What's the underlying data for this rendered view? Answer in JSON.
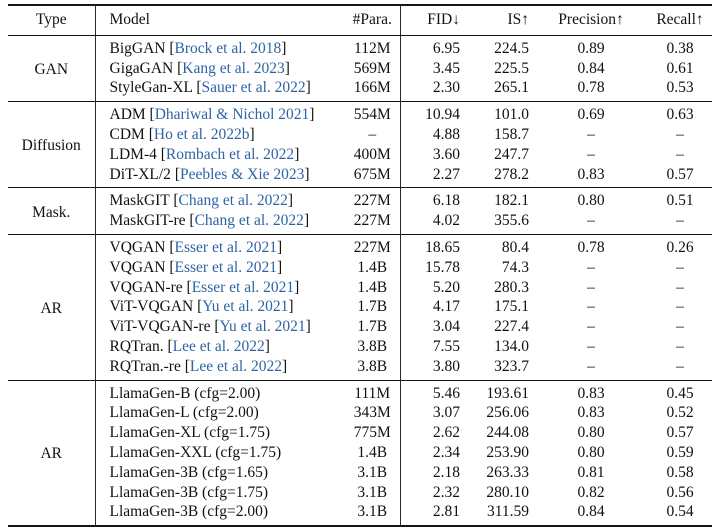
{
  "table": {
    "columns": [
      "Type",
      "Model",
      "#Para.",
      "FID↓",
      "IS↑",
      "Precision↑",
      "Recall↑"
    ],
    "groups": [
      {
        "type": "GAN",
        "rows": [
          {
            "model": "BigGAN",
            "cite": "Brock et al. 2018",
            "para": "112M",
            "fid": "6.95",
            "is": "224.5",
            "precision": "0.89",
            "recall": "0.38"
          },
          {
            "model": "GigaGAN",
            "cite": "Kang et al. 2023",
            "para": "569M",
            "fid": "3.45",
            "is": "225.5",
            "precision": "0.84",
            "recall": "0.61"
          },
          {
            "model": "StyleGan-XL",
            "cite": "Sauer et al. 2022",
            "para": "166M",
            "fid": "2.30",
            "is": "265.1",
            "precision": "0.78",
            "recall": "0.53"
          }
        ]
      },
      {
        "type": "Diffusion",
        "rows": [
          {
            "model": "ADM",
            "cite": "Dhariwal & Nichol 2021",
            "para": "554M",
            "fid": "10.94",
            "is": "101.0",
            "precision": "0.69",
            "recall": "0.63"
          },
          {
            "model": "CDM",
            "cite": "Ho et al. 2022b",
            "para": "–",
            "fid": "4.88",
            "is": "158.7",
            "precision": "–",
            "recall": "–"
          },
          {
            "model": "LDM-4",
            "cite": "Rombach et al. 2022",
            "para": "400M",
            "fid": "3.60",
            "is": "247.7",
            "precision": "–",
            "recall": "–"
          },
          {
            "model": "DiT-XL/2",
            "cite": "Peebles & Xie 2023",
            "para": "675M",
            "fid": "2.27",
            "is": "278.2",
            "precision": "0.83",
            "recall": "0.57"
          }
        ]
      },
      {
        "type": "Mask.",
        "rows": [
          {
            "model": "MaskGIT",
            "cite": "Chang et al. 2022",
            "para": "227M",
            "fid": "6.18",
            "is": "182.1",
            "precision": "0.80",
            "recall": "0.51"
          },
          {
            "model": "MaskGIT-re",
            "cite": "Chang et al. 2022",
            "para": "227M",
            "fid": "4.02",
            "is": "355.6",
            "precision": "–",
            "recall": "–"
          }
        ]
      },
      {
        "type": "AR",
        "rows": [
          {
            "model": "VQGAN",
            "cite": "Esser et al. 2021",
            "para": "227M",
            "fid": "18.65",
            "is": "80.4",
            "precision": "0.78",
            "recall": "0.26"
          },
          {
            "model": "VQGAN",
            "cite": "Esser et al. 2021",
            "para": "1.4B",
            "fid": "15.78",
            "is": "74.3",
            "precision": "–",
            "recall": "–"
          },
          {
            "model": "VQGAN-re",
            "cite": "Esser et al. 2021",
            "para": "1.4B",
            "fid": "5.20",
            "is": "280.3",
            "precision": "–",
            "recall": "–"
          },
          {
            "model": "ViT-VQGAN",
            "cite": "Yu et al. 2021",
            "para": "1.7B",
            "fid": "4.17",
            "is": "175.1",
            "precision": "–",
            "recall": "–"
          },
          {
            "model": "ViT-VQGAN-re",
            "cite": "Yu et al. 2021",
            "para": "1.7B",
            "fid": "3.04",
            "is": "227.4",
            "precision": "–",
            "recall": "–"
          },
          {
            "model": "RQTran.",
            "cite": "Lee et al. 2022",
            "para": "3.8B",
            "fid": "7.55",
            "is": "134.0",
            "precision": "–",
            "recall": "–"
          },
          {
            "model": "RQTran.-re",
            "cite": "Lee et al. 2022",
            "para": "3.8B",
            "fid": "3.80",
            "is": "323.7",
            "precision": "–",
            "recall": "–"
          }
        ]
      },
      {
        "type": "AR",
        "rows": [
          {
            "model": "LlamaGen-B (cfg=2.00)",
            "cite": null,
            "para": "111M",
            "fid": "5.46",
            "is": "193.61",
            "precision": "0.83",
            "recall": "0.45"
          },
          {
            "model": "LlamaGen-L (cfg=2.00)",
            "cite": null,
            "para": "343M",
            "fid": "3.07",
            "is": "256.06",
            "precision": "0.83",
            "recall": "0.52"
          },
          {
            "model": "LlamaGen-XL (cfg=1.75)",
            "cite": null,
            "para": "775M",
            "fid": "2.62",
            "is": "244.08",
            "precision": "0.80",
            "recall": "0.57"
          },
          {
            "model": "LlamaGen-XXL (cfg=1.75)",
            "cite": null,
            "para": "1.4B",
            "fid": "2.34",
            "is": "253.90",
            "precision": "0.80",
            "recall": "0.59"
          },
          {
            "model": "LlamaGen-3B (cfg=1.65)",
            "cite": null,
            "para": "3.1B",
            "fid": "2.18",
            "is": "263.33",
            "precision": "0.81",
            "recall": "0.58"
          },
          {
            "model": "LlamaGen-3B (cfg=1.75)",
            "cite": null,
            "para": "3.1B",
            "fid": "2.32",
            "is": "280.10",
            "precision": "0.82",
            "recall": "0.56"
          },
          {
            "model": "LlamaGen-3B (cfg=2.00)",
            "cite": null,
            "para": "3.1B",
            "fid": "2.81",
            "is": "311.59",
            "precision": "0.84",
            "recall": "0.54"
          }
        ]
      }
    ]
  },
  "colors": {
    "citation_link": "#2e64a4",
    "rule": "#151515",
    "thin_rule": "#7a7a7a",
    "text": "#111111",
    "background": "#ffffff"
  }
}
